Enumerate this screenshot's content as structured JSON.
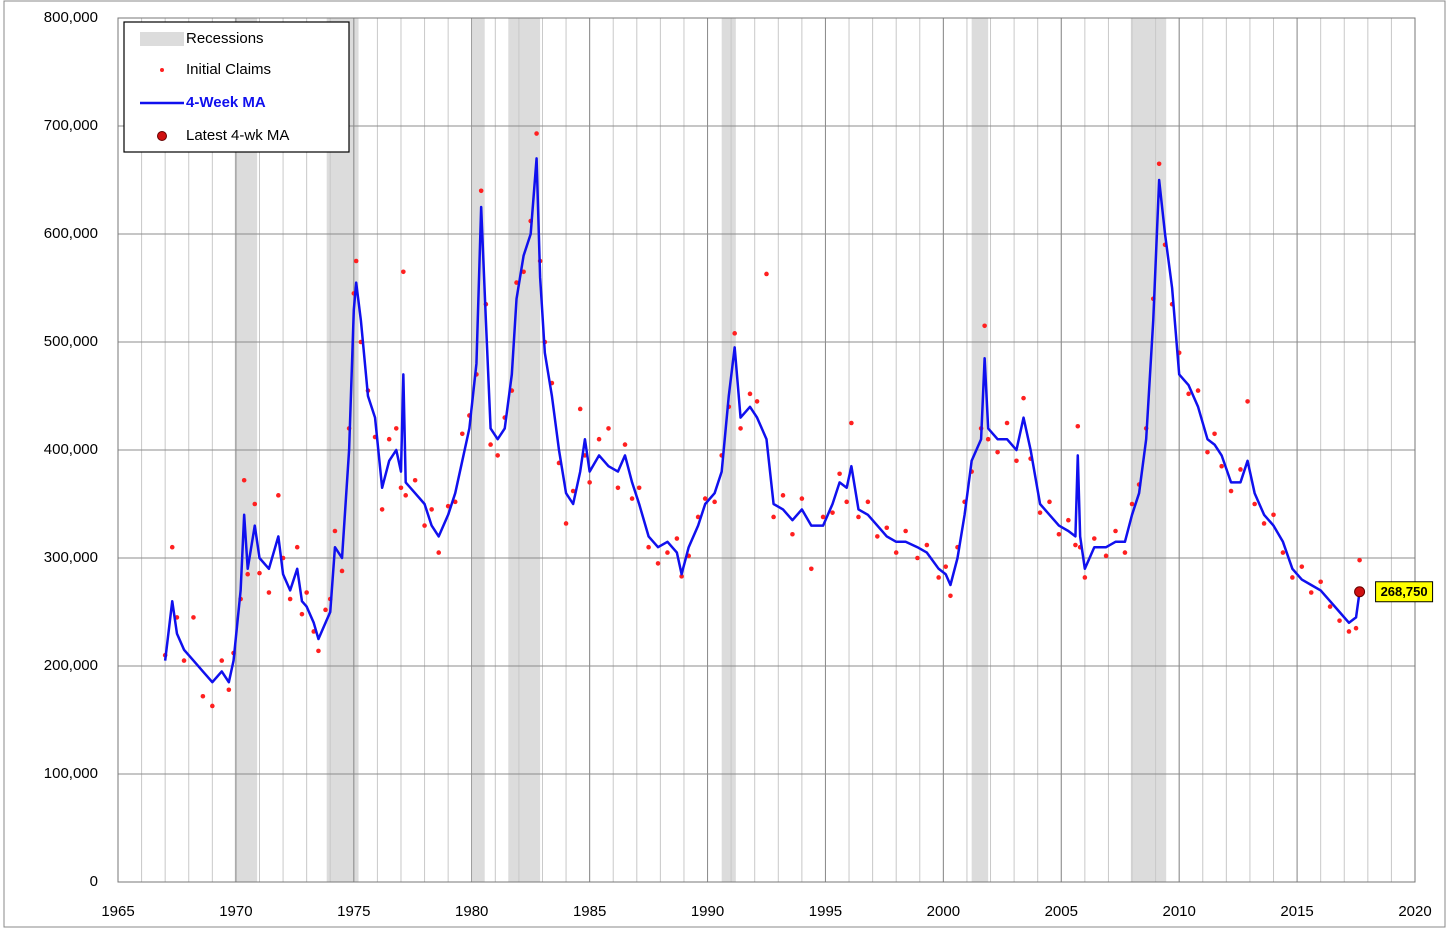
{
  "chart_data": {
    "type": "line",
    "xlim": [
      1965,
      2020
    ],
    "xticks": [
      1965,
      1970,
      1975,
      1980,
      1985,
      1990,
      1995,
      2000,
      2005,
      2010,
      2015,
      2020
    ],
    "ylim": [
      0,
      800000
    ],
    "yticks": [
      0,
      {
        "value": 100000,
        "label": "100,000"
      },
      {
        "value": 200000,
        "label": "200,000"
      },
      {
        "value": 300000,
        "label": "300,000"
      },
      {
        "value": 400000,
        "label": "400,000"
      },
      {
        "value": 500000,
        "label": "500,000"
      },
      {
        "value": 600000,
        "label": "600,000"
      },
      {
        "value": 700000,
        "label": "700,000"
      },
      {
        "value": 800000,
        "label": "800,000"
      }
    ],
    "grid": true,
    "legend": "top-left",
    "recessions": {
      "name": "Recessions",
      "color": "#dcdcdc",
      "periods": [
        [
          1969.95,
          1970.9
        ],
        [
          1973.85,
          1975.2
        ],
        [
          1980.05,
          1980.55
        ],
        [
          1981.55,
          1982.9
        ],
        [
          1990.6,
          1991.2
        ],
        [
          2001.2,
          2001.9
        ],
        [
          2007.95,
          2009.45
        ]
      ]
    },
    "x": [
      1967.0,
      1967.3,
      1967.5,
      1967.8,
      1968.2,
      1968.6,
      1969.0,
      1969.4,
      1969.7,
      1969.9,
      1970.2,
      1970.35,
      1970.5,
      1970.8,
      1971.0,
      1971.4,
      1971.8,
      1972.0,
      1972.3,
      1972.6,
      1972.8,
      1973.0,
      1973.3,
      1973.5,
      1973.8,
      1974.0,
      1974.2,
      1974.5,
      1974.8,
      1975.0,
      1975.1,
      1975.3,
      1975.6,
      1975.9,
      1976.2,
      1976.5,
      1976.8,
      1977.0,
      1977.1,
      1977.2,
      1977.6,
      1978.0,
      1978.3,
      1978.6,
      1979.0,
      1979.3,
      1979.6,
      1979.9,
      1980.2,
      1980.4,
      1980.6,
      1980.8,
      1981.1,
      1981.4,
      1981.7,
      1981.9,
      1982.2,
      1982.5,
      1982.75,
      1982.9,
      1983.1,
      1983.4,
      1983.7,
      1984.0,
      1984.3,
      1984.6,
      1984.8,
      1985.0,
      1985.4,
      1985.8,
      1986.2,
      1986.5,
      1986.8,
      1987.1,
      1987.5,
      1987.9,
      1988.3,
      1988.7,
      1988.9,
      1989.2,
      1989.6,
      1989.9,
      1990.3,
      1990.6,
      1990.9,
      1991.15,
      1991.4,
      1991.8,
      1992.1,
      1992.5,
      1992.8,
      1993.2,
      1993.6,
      1994.0,
      1994.4,
      1994.9,
      1995.3,
      1995.6,
      1995.9,
      1996.1,
      1996.4,
      1996.8,
      1997.2,
      1997.6,
      1998.0,
      1998.4,
      1998.9,
      1999.3,
      1999.8,
      2000.1,
      2000.3,
      2000.6,
      2000.9,
      2001.2,
      2001.6,
      2001.75,
      2001.9,
      2002.3,
      2002.7,
      2003.1,
      2003.4,
      2003.7,
      2004.1,
      2004.5,
      2004.9,
      2005.3,
      2005.6,
      2005.7,
      2005.8,
      2006.0,
      2006.4,
      2006.9,
      2007.3,
      2007.7,
      2008.0,
      2008.3,
      2008.6,
      2008.9,
      2009.15,
      2009.4,
      2009.7,
      2010.0,
      2010.4,
      2010.8,
      2011.2,
      2011.5,
      2011.8,
      2012.2,
      2012.6,
      2012.9,
      2013.2,
      2013.6,
      2014.0,
      2014.4,
      2014.8,
      2015.2,
      2015.6,
      2016.0,
      2016.4,
      2016.8,
      2017.2,
      2017.5,
      2017.65
    ],
    "series": [
      {
        "name": "Initial Claims",
        "color": "#ff2020",
        "style": "scatter",
        "values": [
          210000,
          310000,
          245000,
          205000,
          245000,
          172000,
          163000,
          205000,
          178000,
          212000,
          262000,
          372000,
          285000,
          350000,
          286000,
          268000,
          358000,
          300000,
          262000,
          310000,
          248000,
          268000,
          232000,
          214000,
          252000,
          262000,
          325000,
          288000,
          420000,
          545000,
          575000,
          500000,
          455000,
          412000,
          345000,
          410000,
          420000,
          365000,
          565000,
          358000,
          372000,
          330000,
          345000,
          305000,
          348000,
          352000,
          415000,
          432000,
          470000,
          640000,
          535000,
          405000,
          395000,
          430000,
          455000,
          555000,
          565000,
          612000,
          693000,
          575000,
          500000,
          462000,
          388000,
          332000,
          362000,
          438000,
          395000,
          370000,
          410000,
          420000,
          365000,
          405000,
          355000,
          365000,
          310000,
          295000,
          305000,
          318000,
          283000,
          302000,
          338000,
          355000,
          352000,
          395000,
          440000,
          508000,
          420000,
          452000,
          445000,
          563000,
          338000,
          358000,
          322000,
          355000,
          290000,
          338000,
          342000,
          378000,
          352000,
          425000,
          338000,
          352000,
          320000,
          328000,
          305000,
          325000,
          300000,
          312000,
          282000,
          292000,
          265000,
          310000,
          352000,
          380000,
          420000,
          515000,
          410000,
          398000,
          425000,
          390000,
          448000,
          392000,
          342000,
          352000,
          322000,
          335000,
          312000,
          422000,
          310000,
          282000,
          318000,
          302000,
          325000,
          305000,
          350000,
          368000,
          420000,
          540000,
          665000,
          590000,
          535000,
          490000,
          452000,
          455000,
          398000,
          415000,
          385000,
          362000,
          382000,
          445000,
          350000,
          332000,
          340000,
          305000,
          282000,
          292000,
          268000,
          278000,
          255000,
          242000,
          232000,
          235000,
          298000
        ]
      },
      {
        "name": "4-Week MA",
        "color": "#1010ee",
        "style": "line",
        "values": [
          205000,
          260000,
          230000,
          215000,
          205000,
          195000,
          185000,
          195000,
          185000,
          205000,
          270000,
          340000,
          290000,
          330000,
          300000,
          290000,
          320000,
          285000,
          270000,
          290000,
          260000,
          255000,
          240000,
          225000,
          240000,
          250000,
          310000,
          300000,
          400000,
          530000,
          555000,
          520000,
          450000,
          430000,
          365000,
          390000,
          400000,
          380000,
          470000,
          370000,
          360000,
          350000,
          330000,
          320000,
          340000,
          360000,
          390000,
          420000,
          480000,
          625000,
          520000,
          420000,
          410000,
          420000,
          470000,
          540000,
          580000,
          600000,
          670000,
          560000,
          490000,
          450000,
          400000,
          360000,
          350000,
          380000,
          410000,
          380000,
          395000,
          385000,
          380000,
          395000,
          370000,
          350000,
          320000,
          310000,
          315000,
          305000,
          285000,
          310000,
          330000,
          350000,
          360000,
          380000,
          450000,
          495000,
          430000,
          440000,
          430000,
          410000,
          350000,
          345000,
          335000,
          345000,
          330000,
          330000,
          350000,
          370000,
          365000,
          385000,
          345000,
          340000,
          330000,
          320000,
          315000,
          315000,
          310000,
          305000,
          290000,
          285000,
          275000,
          300000,
          340000,
          390000,
          410000,
          485000,
          420000,
          410000,
          410000,
          400000,
          430000,
          400000,
          350000,
          340000,
          330000,
          325000,
          320000,
          395000,
          320000,
          290000,
          310000,
          310000,
          315000,
          315000,
          340000,
          360000,
          410000,
          520000,
          650000,
          600000,
          550000,
          470000,
          460000,
          440000,
          410000,
          405000,
          395000,
          370000,
          370000,
          390000,
          360000,
          340000,
          330000,
          315000,
          290000,
          280000,
          275000,
          270000,
          260000,
          250000,
          240000,
          245000,
          268750
        ]
      }
    ],
    "latest": {
      "name": "Latest 4-wk MA",
      "x": 2017.65,
      "value": 268750,
      "label": "268,750",
      "color": "#d01010",
      "label_color": "#ffff00"
    }
  }
}
